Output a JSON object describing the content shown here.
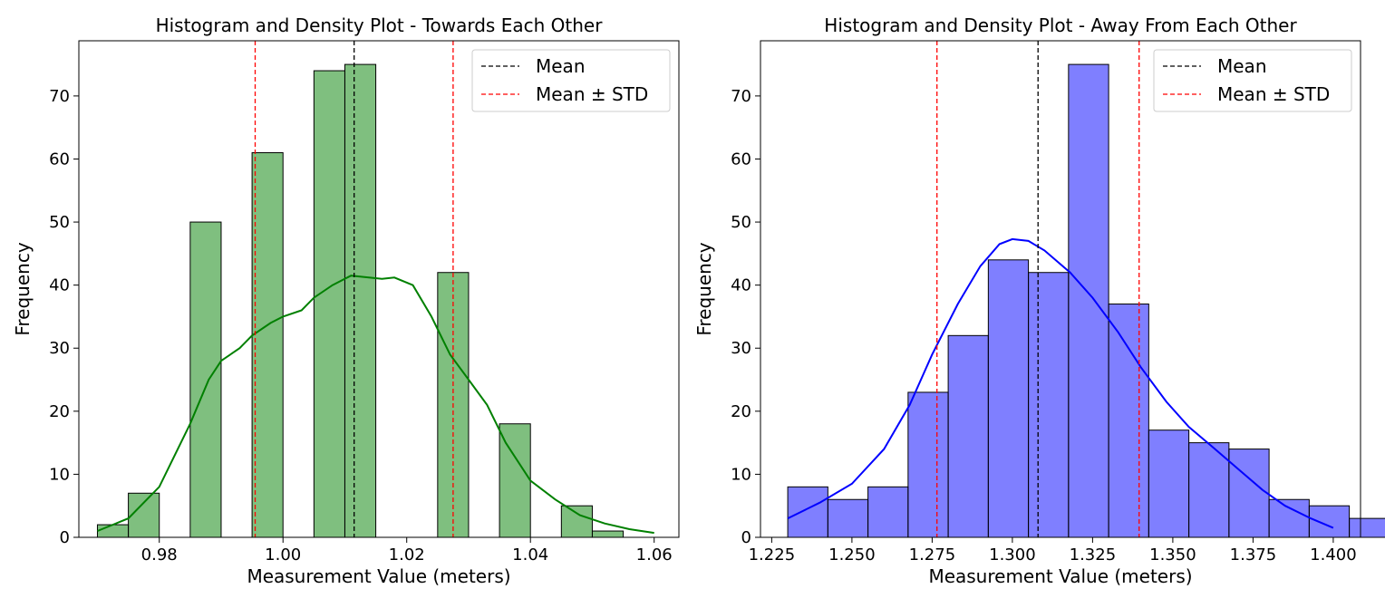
{
  "chart_data": [
    {
      "type": "bar",
      "title": "Histogram and Density Plot - Towards Each Other",
      "xlabel": "Measurement Value (meters)",
      "ylabel": "Frequency",
      "xlim": [
        0.967,
        1.064
      ],
      "ylim": [
        0,
        78.75
      ],
      "xticks": [
        0.98,
        1.0,
        1.02,
        1.04,
        1.06
      ],
      "xtick_labels": [
        "0.98",
        "1.00",
        "1.02",
        "1.04",
        "1.06"
      ],
      "yticks": [
        0,
        10,
        20,
        30,
        40,
        50,
        60,
        70
      ],
      "ytick_labels": [
        "0",
        "10",
        "20",
        "30",
        "40",
        "50",
        "60",
        "70"
      ],
      "bar_color": "#008000",
      "bars": [
        {
          "x0": 0.97,
          "x1": 0.975,
          "value": 2
        },
        {
          "x0": 0.975,
          "x1": 0.98,
          "value": 7
        },
        {
          "x0": 0.985,
          "x1": 0.99,
          "value": 50
        },
        {
          "x0": 0.995,
          "x1": 1.0,
          "value": 61
        },
        {
          "x0": 1.005,
          "x1": 1.01,
          "value": 74
        },
        {
          "x0": 1.01,
          "x1": 1.015,
          "value": 75
        },
        {
          "x0": 1.025,
          "x1": 1.03,
          "value": 42
        },
        {
          "x0": 1.035,
          "x1": 1.04,
          "value": 18
        },
        {
          "x0": 1.045,
          "x1": 1.05,
          "value": 5
        },
        {
          "x0": 1.05,
          "x1": 1.055,
          "value": 1
        }
      ],
      "density_color": "#008000",
      "density": {
        "x": [
          0.97,
          0.975,
          0.98,
          0.985,
          0.988,
          0.99,
          0.993,
          0.995,
          0.998,
          1.0,
          1.003,
          1.005,
          1.008,
          1.011,
          1.013,
          1.016,
          1.018,
          1.021,
          1.024,
          1.027,
          1.03,
          1.033,
          1.036,
          1.04,
          1.044,
          1.048,
          1.052,
          1.056,
          1.06
        ],
        "y": [
          1,
          3,
          8,
          18,
          25,
          28,
          30,
          32,
          34,
          35,
          36,
          38,
          40,
          41.5,
          41.3,
          41,
          41.2,
          40,
          35,
          29,
          25,
          21,
          15,
          9,
          6,
          3.5,
          2.2,
          1.3,
          0.7
        ]
      },
      "mean": 1.0115,
      "mean_minus_std": 0.9955,
      "mean_plus_std": 1.0275,
      "legend": {
        "position": "upper-right",
        "entries": [
          {
            "label": "Mean",
            "color": "#000000"
          },
          {
            "label": "Mean ± STD",
            "color": "#ff0000"
          }
        ]
      }
    },
    {
      "type": "bar",
      "title": "Histogram and Density Plot - Away From Each Other",
      "xlabel": "Measurement Value (meters)",
      "ylabel": "Frequency",
      "xlim": [
        1.2215,
        1.4085
      ],
      "ylim": [
        0,
        78.75
      ],
      "xticks": [
        1.225,
        1.25,
        1.275,
        1.3,
        1.325,
        1.35,
        1.375,
        1.4
      ],
      "xtick_labels": [
        "1.225",
        "1.250",
        "1.275",
        "1.300",
        "1.325",
        "1.350",
        "1.375",
        "1.400"
      ],
      "yticks": [
        0,
        10,
        20,
        30,
        40,
        50,
        60,
        70
      ],
      "ytick_labels": [
        "0",
        "10",
        "20",
        "30",
        "40",
        "50",
        "60",
        "70"
      ],
      "bar_color": "#0000ff",
      "bars": [
        {
          "x0": 1.23,
          "x1": 1.2425,
          "value": 8
        },
        {
          "x0": 1.2425,
          "x1": 1.255,
          "value": 6
        },
        {
          "x0": 1.255,
          "x1": 1.2675,
          "value": 8
        },
        {
          "x0": 1.2675,
          "x1": 1.28,
          "value": 23
        },
        {
          "x0": 1.28,
          "x1": 1.2925,
          "value": 32
        },
        {
          "x0": 1.2925,
          "x1": 1.305,
          "value": 44
        },
        {
          "x0": 1.305,
          "x1": 1.3175,
          "value": 42
        },
        {
          "x0": 1.3175,
          "x1": 1.33,
          "value": 75
        },
        {
          "x0": 1.33,
          "x1": 1.3425,
          "value": 37
        },
        {
          "x0": 1.3425,
          "x1": 1.355,
          "value": 17
        },
        {
          "x0": 1.355,
          "x1": 1.3675,
          "value": 15
        },
        {
          "x0": 1.3675,
          "x1": 1.38,
          "value": 14
        },
        {
          "x0": 1.38,
          "x1": 1.3925,
          "value": 6
        },
        {
          "x0": 1.3925,
          "x1": 1.405,
          "value": 5
        },
        {
          "x0": 1.405,
          "x1": 1.4175,
          "value": 3
        }
      ],
      "density_color": "#0000ff",
      "density": {
        "x": [
          1.23,
          1.24,
          1.25,
          1.26,
          1.268,
          1.275,
          1.283,
          1.29,
          1.296,
          1.3,
          1.305,
          1.31,
          1.318,
          1.325,
          1.333,
          1.34,
          1.348,
          1.355,
          1.362,
          1.37,
          1.378,
          1.385,
          1.393,
          1.4
        ],
        "y": [
          3,
          5.5,
          8.5,
          14,
          21,
          29,
          37,
          43,
          46.5,
          47.3,
          47,
          45.5,
          42,
          38,
          32.5,
          27,
          21.5,
          17.5,
          14.5,
          11,
          7.5,
          5,
          3,
          1.5
        ]
      },
      "mean": 1.308,
      "mean_minus_std": 1.2765,
      "mean_plus_std": 1.3395,
      "legend": {
        "position": "upper-right",
        "entries": [
          {
            "label": "Mean",
            "color": "#000000"
          },
          {
            "label": "Mean ± STD",
            "color": "#ff0000"
          }
        ]
      }
    }
  ]
}
